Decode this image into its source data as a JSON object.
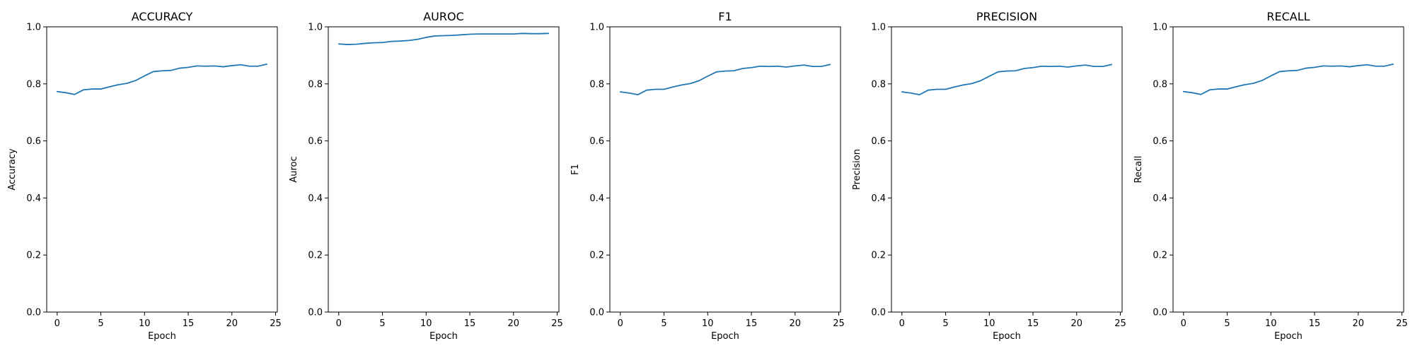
{
  "figure": {
    "line_color": "#1f77b4"
  },
  "chart_data": [
    {
      "type": "line",
      "title": "ACCURACY",
      "xlabel": "Epoch",
      "ylabel": "Accuracy",
      "xlim": [
        -1.2,
        25.2
      ],
      "ylim": [
        0,
        1.0
      ],
      "xticks": [
        0,
        5,
        10,
        15,
        20,
        25
      ],
      "yticks": [
        0.0,
        0.2,
        0.4,
        0.6,
        0.8,
        1.0
      ],
      "x": [
        0,
        1,
        2,
        3,
        4,
        5,
        6,
        7,
        8,
        9,
        10,
        11,
        12,
        13,
        14,
        15,
        16,
        17,
        18,
        19,
        20,
        21,
        22,
        23,
        24
      ],
      "series": [
        {
          "values": [
            0.773,
            0.769,
            0.763,
            0.779,
            0.782,
            0.782,
            0.79,
            0.797,
            0.802,
            0.812,
            0.828,
            0.843,
            0.846,
            0.847,
            0.855,
            0.858,
            0.863,
            0.862,
            0.863,
            0.86,
            0.864,
            0.867,
            0.862,
            0.862,
            0.869
          ]
        }
      ]
    },
    {
      "type": "line",
      "title": "AUROC",
      "xlabel": "Epoch",
      "ylabel": "Auroc",
      "xlim": [
        -1.2,
        25.2
      ],
      "ylim": [
        0,
        1.0
      ],
      "xticks": [
        0,
        5,
        10,
        15,
        20,
        25
      ],
      "yticks": [
        0.0,
        0.2,
        0.4,
        0.6,
        0.8,
        1.0
      ],
      "x": [
        0,
        1,
        2,
        3,
        4,
        5,
        6,
        7,
        8,
        9,
        10,
        11,
        12,
        13,
        14,
        15,
        16,
        17,
        18,
        19,
        20,
        21,
        22,
        23,
        24
      ],
      "series": [
        {
          "values": [
            0.94,
            0.938,
            0.939,
            0.942,
            0.944,
            0.945,
            0.949,
            0.95,
            0.952,
            0.956,
            0.963,
            0.968,
            0.969,
            0.97,
            0.972,
            0.974,
            0.975,
            0.975,
            0.975,
            0.975,
            0.975,
            0.977,
            0.976,
            0.976,
            0.977
          ]
        }
      ]
    },
    {
      "type": "line",
      "title": "F1",
      "xlabel": "Epoch",
      "ylabel": "F1",
      "xlim": [
        -1.2,
        25.2
      ],
      "ylim": [
        0,
        1.0
      ],
      "xticks": [
        0,
        5,
        10,
        15,
        20,
        25
      ],
      "yticks": [
        0.0,
        0.2,
        0.4,
        0.6,
        0.8,
        1.0
      ],
      "x": [
        0,
        1,
        2,
        3,
        4,
        5,
        6,
        7,
        8,
        9,
        10,
        11,
        12,
        13,
        14,
        15,
        16,
        17,
        18,
        19,
        20,
        21,
        22,
        23,
        24
      ],
      "series": [
        {
          "values": [
            0.772,
            0.768,
            0.762,
            0.778,
            0.781,
            0.781,
            0.789,
            0.796,
            0.801,
            0.811,
            0.827,
            0.842,
            0.845,
            0.846,
            0.854,
            0.857,
            0.862,
            0.861,
            0.862,
            0.859,
            0.863,
            0.866,
            0.861,
            0.861,
            0.868
          ]
        }
      ]
    },
    {
      "type": "line",
      "title": "PRECISION",
      "xlabel": "Epoch",
      "ylabel": "Precision",
      "xlim": [
        -1.2,
        25.2
      ],
      "ylim": [
        0,
        1.0
      ],
      "xticks": [
        0,
        5,
        10,
        15,
        20,
        25
      ],
      "yticks": [
        0.0,
        0.2,
        0.4,
        0.6,
        0.8,
        1.0
      ],
      "x": [
        0,
        1,
        2,
        3,
        4,
        5,
        6,
        7,
        8,
        9,
        10,
        11,
        12,
        13,
        14,
        15,
        16,
        17,
        18,
        19,
        20,
        21,
        22,
        23,
        24
      ],
      "series": [
        {
          "values": [
            0.772,
            0.768,
            0.762,
            0.778,
            0.781,
            0.781,
            0.789,
            0.796,
            0.801,
            0.811,
            0.827,
            0.842,
            0.845,
            0.846,
            0.854,
            0.857,
            0.862,
            0.861,
            0.862,
            0.859,
            0.863,
            0.866,
            0.861,
            0.861,
            0.868
          ]
        }
      ]
    },
    {
      "type": "line",
      "title": "RECALL",
      "xlabel": "Epoch",
      "ylabel": "Recall",
      "xlim": [
        -1.2,
        25.2
      ],
      "ylim": [
        0,
        1.0
      ],
      "xticks": [
        0,
        5,
        10,
        15,
        20,
        25
      ],
      "yticks": [
        0.0,
        0.2,
        0.4,
        0.6,
        0.8,
        1.0
      ],
      "x": [
        0,
        1,
        2,
        3,
        4,
        5,
        6,
        7,
        8,
        9,
        10,
        11,
        12,
        13,
        14,
        15,
        16,
        17,
        18,
        19,
        20,
        21,
        22,
        23,
        24
      ],
      "series": [
        {
          "values": [
            0.773,
            0.769,
            0.763,
            0.779,
            0.782,
            0.782,
            0.79,
            0.797,
            0.802,
            0.812,
            0.828,
            0.843,
            0.846,
            0.847,
            0.855,
            0.858,
            0.863,
            0.862,
            0.863,
            0.86,
            0.864,
            0.867,
            0.862,
            0.862,
            0.869
          ]
        }
      ]
    }
  ]
}
